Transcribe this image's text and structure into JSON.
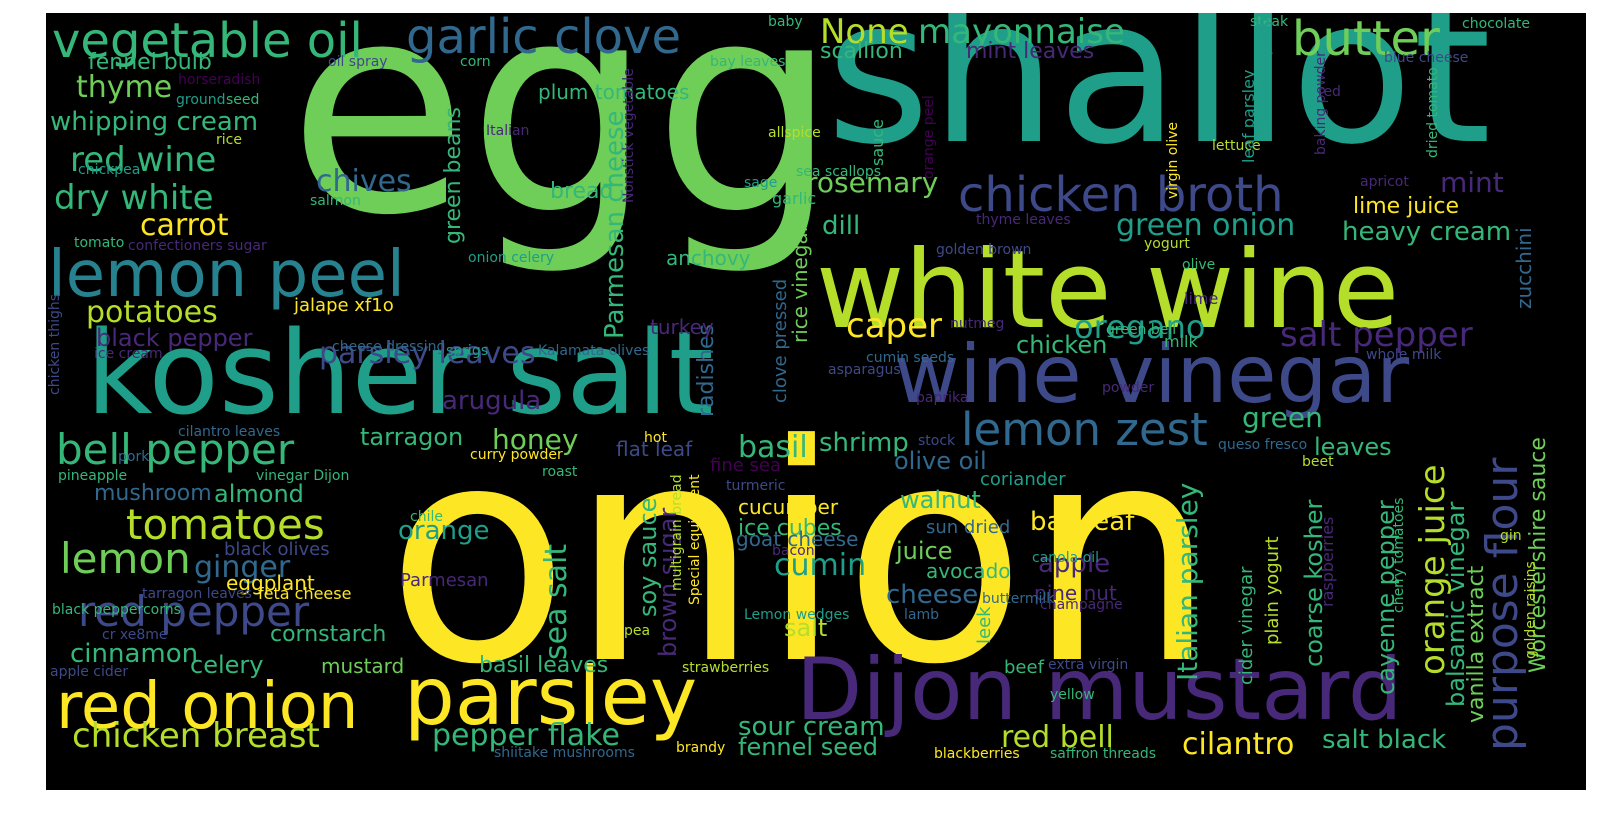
{
  "palette": {
    "yellow": "#fde725",
    "lime": "#b5de2b",
    "green": "#6ece58",
    "teal": "#35b779",
    "cyan": "#1f9e89",
    "blue": "#26828e",
    "sky": "#31688e",
    "indigo": "#3e4989",
    "violet": "#482878",
    "purple": "#440154"
  },
  "words": [
    {
      "text": "onion",
      "color": "yellow"
    },
    {
      "text": "egg",
      "color": "green"
    },
    {
      "text": "shallot",
      "color": "cyan"
    },
    {
      "text": "kosher salt",
      "color": "cyan"
    },
    {
      "text": "white wine",
      "color": "lime"
    },
    {
      "text": "wine vinegar",
      "color": "indigo"
    },
    {
      "text": "Dijon mustard",
      "color": "violet"
    },
    {
      "text": "parsley",
      "color": "yellow"
    },
    {
      "text": "red onion",
      "color": "yellow"
    },
    {
      "text": "lemon peel",
      "color": "blue"
    },
    {
      "text": "garlic clove",
      "color": "sky"
    },
    {
      "text": "vegetable oil",
      "color": "teal"
    },
    {
      "text": "butter",
      "color": "green"
    },
    {
      "text": "chicken broth",
      "color": "indigo"
    },
    {
      "text": "lemon zest",
      "color": "sky"
    },
    {
      "text": "bell pepper",
      "color": "teal"
    },
    {
      "text": "tomatoes",
      "color": "lime"
    },
    {
      "text": "red pepper",
      "color": "indigo"
    },
    {
      "text": "lemon",
      "color": "green"
    },
    {
      "text": "purpose flour",
      "color": "indigo"
    },
    {
      "text": "red wine",
      "color": "teal"
    },
    {
      "text": "dry white",
      "color": "teal"
    },
    {
      "text": "None",
      "color": "lime"
    },
    {
      "text": "mayonnaise",
      "color": "teal"
    },
    {
      "text": "thyme",
      "color": "green"
    },
    {
      "text": "whipping cream",
      "color": "teal"
    },
    {
      "text": "fennel bulb",
      "color": "teal"
    },
    {
      "text": "scallion",
      "color": "teal"
    },
    {
      "text": "mint leaves",
      "color": "violet"
    },
    {
      "text": "plum tomatoes",
      "color": "teal"
    },
    {
      "text": "chives",
      "color": "sky"
    },
    {
      "text": "carrot",
      "color": "yellow"
    },
    {
      "text": "bread",
      "color": "teal"
    },
    {
      "text": "rosemary",
      "color": "green"
    },
    {
      "text": "dill",
      "color": "teal"
    },
    {
      "text": "green onion",
      "color": "cyan"
    },
    {
      "text": "heavy cream",
      "color": "teal"
    },
    {
      "text": "lime juice",
      "color": "yellow"
    },
    {
      "text": "mint",
      "color": "violet"
    },
    {
      "text": "potatoes",
      "color": "lime"
    },
    {
      "text": "black pepper",
      "color": "violet"
    },
    {
      "text": "parsley leaves",
      "color": "indigo"
    },
    {
      "text": "caper",
      "color": "yellow"
    },
    {
      "text": "oregano",
      "color": "cyan"
    },
    {
      "text": "salt pepper",
      "color": "violet"
    },
    {
      "text": "chicken",
      "color": "teal"
    },
    {
      "text": "anchovy",
      "color": "teal"
    },
    {
      "text": "arugula",
      "color": "violet"
    },
    {
      "text": "honey",
      "color": "green"
    },
    {
      "text": "basil",
      "color": "teal"
    },
    {
      "text": "tarragon",
      "color": "teal"
    },
    {
      "text": "shrimp",
      "color": "teal"
    },
    {
      "text": "olive oil",
      "color": "sky"
    },
    {
      "text": "green",
      "color": "teal"
    },
    {
      "text": "leaves",
      "color": "teal"
    },
    {
      "text": "orange juice",
      "color": "lime"
    },
    {
      "text": "sea salt",
      "color": "teal"
    },
    {
      "text": "mushroom",
      "color": "sky"
    },
    {
      "text": "almond",
      "color": "teal"
    },
    {
      "text": "ginger",
      "color": "sky"
    },
    {
      "text": "cumin",
      "color": "cyan"
    },
    {
      "text": "walnut",
      "color": "teal"
    },
    {
      "text": "orange",
      "color": "cyan"
    },
    {
      "text": "juice",
      "color": "green"
    },
    {
      "text": "apple",
      "color": "violet"
    },
    {
      "text": "cheese",
      "color": "sky"
    },
    {
      "text": "salt",
      "color": "lime"
    },
    {
      "text": "cinnamon",
      "color": "teal"
    },
    {
      "text": "celery",
      "color": "teal"
    },
    {
      "text": "mustard",
      "color": "green"
    },
    {
      "text": "basil leaves",
      "color": "teal"
    },
    {
      "text": "chicken breast",
      "color": "lime"
    },
    {
      "text": "pepper flake",
      "color": "teal"
    },
    {
      "text": "sour cream",
      "color": "teal"
    },
    {
      "text": "fennel seed",
      "color": "teal"
    },
    {
      "text": "red bell",
      "color": "lime"
    },
    {
      "text": "cilantro",
      "color": "yellow"
    },
    {
      "text": "salt black",
      "color": "teal"
    },
    {
      "text": "cornstarch",
      "color": "teal"
    },
    {
      "text": "cucumber",
      "color": "yellow"
    },
    {
      "text": "ice cubes",
      "color": "teal"
    },
    {
      "text": "goat cheese",
      "color": "sky"
    },
    {
      "text": "bay leaf",
      "color": "yellow"
    },
    {
      "text": "avocado",
      "color": "teal"
    },
    {
      "text": "pine nut",
      "color": "violet"
    },
    {
      "text": "Parmesan cheese",
      "color": "teal"
    },
    {
      "text": "green beans",
      "color": "teal"
    },
    {
      "text": "soy sauce",
      "color": "teal"
    },
    {
      "text": "brown sugar",
      "color": "violet"
    },
    {
      "text": "radishes",
      "color": "sky"
    },
    {
      "text": "Italian parsley",
      "color": "teal"
    },
    {
      "text": "coarse kosher",
      "color": "teal"
    },
    {
      "text": "cayenne pepper",
      "color": "teal"
    },
    {
      "text": "balsamic vinegar",
      "color": "teal"
    },
    {
      "text": "vanilla extract",
      "color": "green"
    },
    {
      "text": "rice vinegar",
      "color": "green"
    },
    {
      "text": "clove pressed",
      "color": "sky"
    },
    {
      "text": "Worcestershire sauce",
      "color": "green"
    },
    {
      "text": "zucchini",
      "color": "sky"
    },
    {
      "text": "eggplant",
      "color": "yellow"
    },
    {
      "text": "black olives",
      "color": "indigo"
    },
    {
      "text": "Parmesan",
      "color": "violet"
    },
    {
      "text": "black peppercorns",
      "color": "teal"
    },
    {
      "text": "tarragon leaves",
      "color": "indigo"
    },
    {
      "text": "feta cheese",
      "color": "yellow"
    },
    {
      "text": "jalape xf1o",
      "color": "yellow"
    },
    {
      "text": "cheese dressing",
      "color": "sky"
    },
    {
      "text": "sprigs",
      "color": "cyan"
    },
    {
      "text": "Kalamata olives",
      "color": "sky"
    },
    {
      "text": "turkey",
      "color": "violet"
    },
    {
      "text": "ice cream",
      "color": "violet"
    },
    {
      "text": "chicken thighs",
      "color": "indigo"
    },
    {
      "text": "cilantro leaves",
      "color": "sky"
    },
    {
      "text": "pineapple",
      "color": "teal"
    },
    {
      "text": "pork",
      "color": "sky"
    },
    {
      "text": "vinegar Dijon",
      "color": "teal"
    },
    {
      "text": "curry powder",
      "color": "yellow"
    },
    {
      "text": "roast",
      "color": "teal"
    },
    {
      "text": "flat leaf",
      "color": "indigo"
    },
    {
      "text": "hot",
      "color": "yellow"
    },
    {
      "text": "fine sea",
      "color": "purple"
    },
    {
      "text": "turmeric",
      "color": "indigo"
    },
    {
      "text": "coriander",
      "color": "cyan"
    },
    {
      "text": "sun dried",
      "color": "sky"
    },
    {
      "text": "chile",
      "color": "teal"
    },
    {
      "text": "multigrain bread",
      "color": "lime"
    },
    {
      "text": "Special equipment",
      "color": "yellow"
    },
    {
      "text": "pea",
      "color": "lime"
    },
    {
      "text": "bacon",
      "color": "violet"
    },
    {
      "text": "buttermilk",
      "color": "sky"
    },
    {
      "text": "Lemon wedges",
      "color": "cyan"
    },
    {
      "text": "lamb",
      "color": "sky"
    },
    {
      "text": "leek",
      "color": "teal"
    },
    {
      "text": "beef",
      "color": "teal"
    },
    {
      "text": "extra virgin",
      "color": "indigo"
    },
    {
      "text": "strawberries",
      "color": "lime"
    },
    {
      "text": "yellow",
      "color": "teal"
    },
    {
      "text": "brandy",
      "color": "yellow"
    },
    {
      "text": "shiitake mushrooms",
      "color": "sky"
    },
    {
      "text": "blackberries",
      "color": "yellow"
    },
    {
      "text": "saffron threads",
      "color": "teal"
    },
    {
      "text": "cider vinegar",
      "color": "teal"
    },
    {
      "text": "plain yogurt",
      "color": "lime"
    },
    {
      "text": "raspberries",
      "color": "violet"
    },
    {
      "text": "cherry tomatoes",
      "color": "teal"
    },
    {
      "text": "golden raisins",
      "color": "lime"
    },
    {
      "text": "gin",
      "color": "lime"
    },
    {
      "text": "champagne",
      "color": "violet"
    },
    {
      "text": "canola oil",
      "color": "cyan"
    },
    {
      "text": "queso fresco",
      "color": "sky"
    },
    {
      "text": "beet",
      "color": "lime"
    },
    {
      "text": "stock",
      "color": "indigo"
    },
    {
      "text": "paprika",
      "color": "violet"
    },
    {
      "text": "cumin seeds",
      "color": "sky"
    },
    {
      "text": "asparagus",
      "color": "indigo"
    },
    {
      "text": "nutmeg",
      "color": "violet"
    },
    {
      "text": "milk",
      "color": "teal"
    },
    {
      "text": "green bell",
      "color": "teal"
    },
    {
      "text": "whole milk",
      "color": "indigo"
    },
    {
      "text": "powder",
      "color": "violet"
    },
    {
      "text": "lime",
      "color": "violet"
    },
    {
      "text": "olive",
      "color": "teal"
    },
    {
      "text": "yogurt",
      "color": "lime"
    },
    {
      "text": "golden brown",
      "color": "indigo"
    },
    {
      "text": "thyme leaves",
      "color": "violet"
    },
    {
      "text": "apricot",
      "color": "violet"
    },
    {
      "text": "lettuce",
      "color": "lime"
    },
    {
      "text": "orange peel",
      "color": "purple"
    },
    {
      "text": "sauce",
      "color": "teal"
    },
    {
      "text": "sage",
      "color": "cyan"
    },
    {
      "text": "garlic",
      "color": "teal"
    },
    {
      "text": "sea scallops",
      "color": "teal"
    },
    {
      "text": "allspice",
      "color": "lime"
    },
    {
      "text": "Italian",
      "color": "violet"
    },
    {
      "text": "Nonstick vegetable",
      "color": "violet"
    },
    {
      "text": "onion celery",
      "color": "cyan"
    },
    {
      "text": "salmon",
      "color": "teal"
    },
    {
      "text": "chickpea",
      "color": "cyan"
    },
    {
      "text": "tomato",
      "color": "teal"
    },
    {
      "text": "confectioners sugar",
      "color": "violet"
    },
    {
      "text": "rice",
      "color": "lime"
    },
    {
      "text": "ground",
      "color": "cyan"
    },
    {
      "text": "seed",
      "color": "teal"
    },
    {
      "text": "horseradish",
      "color": "purple"
    },
    {
      "text": "oil spray",
      "color": "indigo"
    },
    {
      "text": "corn",
      "color": "teal"
    },
    {
      "text": "bay leaves",
      "color": "teal"
    },
    {
      "text": "baby",
      "color": "teal"
    },
    {
      "text": "steak",
      "color": "teal"
    },
    {
      "text": "chocolate",
      "color": "teal"
    },
    {
      "text": "blue cheese",
      "color": "indigo"
    },
    {
      "text": "leaf parsley",
      "color": "cyan"
    },
    {
      "text": "tomato paste",
      "color": "cyan"
    },
    {
      "text": "virgin olive",
      "color": "yellow"
    },
    {
      "text": "baking powder",
      "color": "violet"
    },
    {
      "text": "red",
      "color": "violet"
    },
    {
      "text": "dried tomato",
      "color": "teal"
    },
    {
      "text": "cr xe8me",
      "color": "indigo"
    },
    {
      "text": "apple cider",
      "color": "indigo"
    }
  ]
}
